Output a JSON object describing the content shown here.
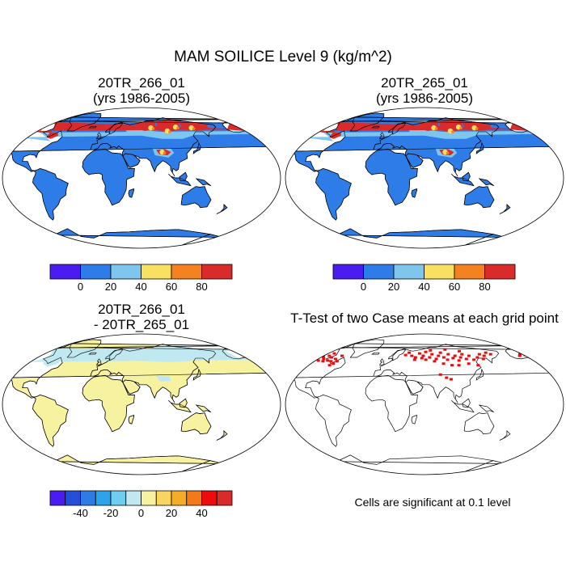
{
  "title": "MAM SOILICE Level 9 (kg/m^2)",
  "panels": [
    {
      "id": "case1",
      "title_line1": "20TR_266_01",
      "title_line2": "(yrs 1986-2005)"
    },
    {
      "id": "case2",
      "title_line1": "20TR_265_01",
      "title_line2": "(yrs 1986-2005)"
    },
    {
      "id": "difference",
      "title_line1": "20TR_266_01",
      "title_line2": "- 20TR_265_01"
    },
    {
      "id": "ttest",
      "title_line1": "T-Test of two Case means at each grid point",
      "note": "Cells are significant at 0.1 level"
    }
  ],
  "colorbar_main": {
    "colors": [
      "#4b1cf0",
      "#2e7ce8",
      "#7ec6ee",
      "#f7e062",
      "#f58220",
      "#d92b2b"
    ],
    "labels": [
      "0",
      "20",
      "40",
      "60",
      "80"
    ]
  },
  "colorbar_diff": {
    "colors": [
      "#4b1cf0",
      "#2450d8",
      "#2f7be6",
      "#2ea3ea",
      "#6fcdf0",
      "#bfe8f0",
      "#f7f2a0",
      "#f7d560",
      "#f5ad28",
      "#f27a18",
      "#ed0c0c",
      "#d92b2b"
    ],
    "labels": [
      "-40",
      "-20",
      "0",
      "20",
      "40"
    ]
  },
  "map_colors": {
    "ocean": "#ffffff",
    "land_main": "#2e7ce8",
    "land_diff": "#f7f2a0",
    "significant": "#ee0a0a",
    "coastline": "#000000"
  }
}
